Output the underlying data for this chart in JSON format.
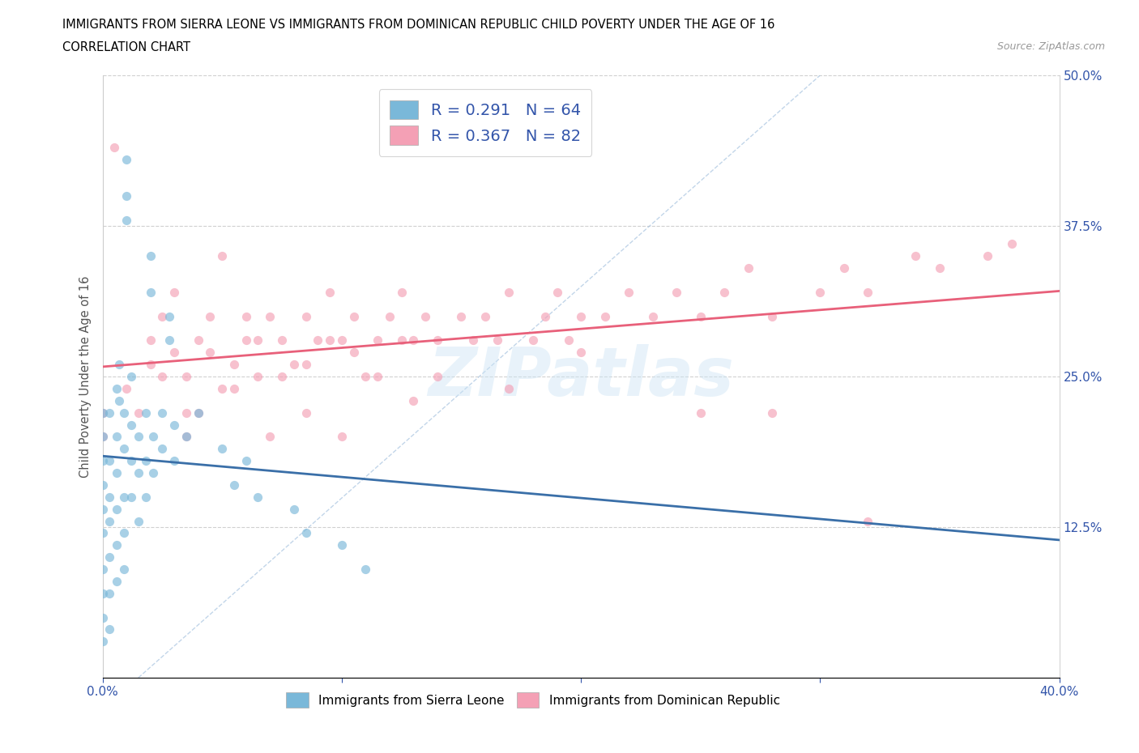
{
  "title_line1": "IMMIGRANTS FROM SIERRA LEONE VS IMMIGRANTS FROM DOMINICAN REPUBLIC CHILD POVERTY UNDER THE AGE OF 16",
  "title_line2": "CORRELATION CHART",
  "source_text": "Source: ZipAtlas.com",
  "ylabel": "Child Poverty Under the Age of 16",
  "xlim": [
    0.0,
    0.4
  ],
  "ylim": [
    0.0,
    0.5
  ],
  "ytick_labels": [
    "12.5%",
    "25.0%",
    "37.5%",
    "50.0%"
  ],
  "ytick_values": [
    0.125,
    0.25,
    0.375,
    0.5
  ],
  "color_sierra": "#7ab8d9",
  "color_dominican": "#f4a0b5",
  "color_trend_sierra": "#3a6fa8",
  "color_trend_dominican": "#e8607a",
  "color_diagonal": "#a8c4e0",
  "watermark_text": "ZIPatlas",
  "sierra_leone_x": [
    0.0,
    0.0,
    0.0,
    0.0,
    0.0,
    0.0,
    0.0,
    0.0,
    0.0,
    0.0,
    0.003,
    0.003,
    0.003,
    0.003,
    0.003,
    0.003,
    0.003,
    0.006,
    0.006,
    0.006,
    0.006,
    0.006,
    0.006,
    0.009,
    0.009,
    0.009,
    0.009,
    0.009,
    0.012,
    0.012,
    0.012,
    0.012,
    0.015,
    0.015,
    0.015,
    0.018,
    0.018,
    0.018,
    0.021,
    0.021,
    0.025,
    0.025,
    0.03,
    0.03,
    0.035,
    0.04,
    0.05,
    0.055,
    0.06,
    0.065,
    0.08,
    0.085,
    0.1,
    0.11,
    0.01,
    0.01,
    0.01,
    0.02,
    0.02,
    0.028,
    0.028,
    0.007,
    0.007
  ],
  "sierra_leone_y": [
    0.2,
    0.22,
    0.18,
    0.05,
    0.07,
    0.09,
    0.03,
    0.12,
    0.14,
    0.16,
    0.18,
    0.22,
    0.15,
    0.1,
    0.07,
    0.04,
    0.13,
    0.2,
    0.17,
    0.14,
    0.11,
    0.08,
    0.24,
    0.19,
    0.15,
    0.12,
    0.22,
    0.09,
    0.18,
    0.21,
    0.15,
    0.25,
    0.2,
    0.17,
    0.13,
    0.22,
    0.18,
    0.15,
    0.2,
    0.17,
    0.22,
    0.19,
    0.21,
    0.18,
    0.2,
    0.22,
    0.19,
    0.16,
    0.18,
    0.15,
    0.14,
    0.12,
    0.11,
    0.09,
    0.4,
    0.43,
    0.38,
    0.35,
    0.32,
    0.28,
    0.3,
    0.26,
    0.23
  ],
  "dominican_x": [
    0.0,
    0.0,
    0.005,
    0.01,
    0.015,
    0.02,
    0.02,
    0.025,
    0.025,
    0.03,
    0.03,
    0.035,
    0.04,
    0.04,
    0.045,
    0.05,
    0.05,
    0.055,
    0.06,
    0.06,
    0.065,
    0.07,
    0.075,
    0.08,
    0.085,
    0.09,
    0.095,
    0.1,
    0.105,
    0.11,
    0.115,
    0.12,
    0.125,
    0.13,
    0.135,
    0.14,
    0.15,
    0.155,
    0.16,
    0.165,
    0.17,
    0.18,
    0.185,
    0.19,
    0.195,
    0.2,
    0.21,
    0.22,
    0.23,
    0.24,
    0.25,
    0.26,
    0.27,
    0.28,
    0.3,
    0.31,
    0.32,
    0.34,
    0.35,
    0.37,
    0.38,
    0.045,
    0.055,
    0.065,
    0.075,
    0.085,
    0.095,
    0.105,
    0.115,
    0.125,
    0.035,
    0.13,
    0.17,
    0.28,
    0.32,
    0.035,
    0.07,
    0.085,
    0.1,
    0.14,
    0.2,
    0.25
  ],
  "dominican_y": [
    0.2,
    0.22,
    0.44,
    0.24,
    0.22,
    0.26,
    0.28,
    0.25,
    0.3,
    0.27,
    0.32,
    0.25,
    0.28,
    0.22,
    0.3,
    0.24,
    0.35,
    0.26,
    0.28,
    0.3,
    0.25,
    0.3,
    0.28,
    0.26,
    0.3,
    0.28,
    0.32,
    0.28,
    0.3,
    0.25,
    0.28,
    0.3,
    0.32,
    0.28,
    0.3,
    0.28,
    0.3,
    0.28,
    0.3,
    0.28,
    0.32,
    0.28,
    0.3,
    0.32,
    0.28,
    0.3,
    0.3,
    0.32,
    0.3,
    0.32,
    0.3,
    0.32,
    0.34,
    0.3,
    0.32,
    0.34,
    0.32,
    0.35,
    0.34,
    0.35,
    0.36,
    0.27,
    0.24,
    0.28,
    0.25,
    0.26,
    0.28,
    0.27,
    0.25,
    0.28,
    0.22,
    0.23,
    0.24,
    0.22,
    0.13,
    0.2,
    0.2,
    0.22,
    0.2,
    0.25,
    0.27,
    0.22
  ]
}
